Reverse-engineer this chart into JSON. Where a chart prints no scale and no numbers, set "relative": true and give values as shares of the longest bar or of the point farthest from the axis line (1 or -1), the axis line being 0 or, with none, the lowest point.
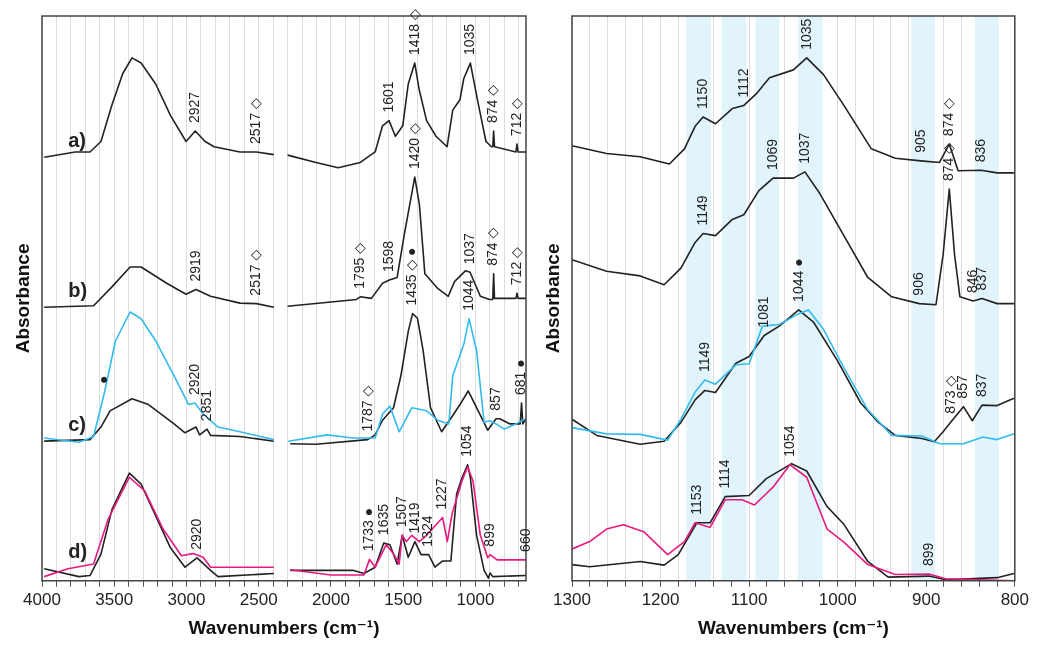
{
  "chart_data": [
    {
      "type": "line",
      "xlabel": "Wavenumbers (cm⁻¹)",
      "ylabel": "Absorbance",
      "relative": true,
      "grid": "x",
      "marker": "none",
      "legend": false,
      "xlim": [
        4000,
        650
      ],
      "xticks": [
        4000,
        {
          "value": 3900,
          "label": null
        },
        {
          "value": 3800,
          "label": null
        },
        {
          "value": 3700,
          "label": null
        },
        {
          "value": 3600,
          "label": null
        },
        3500,
        {
          "value": 3400,
          "label": null
        },
        {
          "value": 3300,
          "label": null
        },
        {
          "value": 3200,
          "label": null
        },
        {
          "value": 3100,
          "label": null
        },
        3000,
        {
          "value": 2900,
          "label": null
        },
        {
          "value": 2800,
          "label": null
        },
        {
          "value": 2700,
          "label": null
        },
        {
          "value": 2600,
          "label": null
        },
        2500,
        {
          "value": 2400,
          "label": null
        },
        {
          "value": 2300,
          "label": null
        },
        {
          "value": 2200,
          "label": null
        },
        {
          "value": 2100,
          "label": null
        },
        2000,
        {
          "value": 1900,
          "label": null
        },
        {
          "value": 1800,
          "label": null
        },
        {
          "value": 1700,
          "label": null
        },
        {
          "value": 1600,
          "label": null
        },
        1500,
        {
          "value": 1400,
          "label": null
        },
        {
          "value": 1300,
          "label": null
        },
        {
          "value": 1200,
          "label": null
        },
        {
          "value": 1100,
          "label": null
        },
        1000,
        {
          "value": 900,
          "label": null
        },
        {
          "value": 800,
          "label": null
        },
        {
          "value": 700,
          "label": null
        }
      ],
      "series": [
        {
          "name": "a)",
          "color": "#222222",
          "x": [
            3985,
            3770,
            3668,
            3592,
            3516,
            3441,
            3377,
            3314,
            3213,
            3111,
            3003,
            2939,
            2871,
            2808,
            2630,
            2516,
            2395,
            2350,
            2300,
            2103,
            1950,
            1797,
            1694,
            1643,
            1598,
            1554,
            1503,
            1465,
            1420,
            1390,
            1338,
            1273,
            1196,
            1157,
            1107,
            1081,
            1035,
            979,
            927,
            889,
            880,
            874,
            868,
            720,
            712,
            705,
            650
          ],
          "values": [
            0.81,
            0.82,
            0.82,
            0.84,
            0.91,
            0.97,
            1.0,
            0.99,
            0.95,
            0.89,
            0.84,
            0.86,
            0.84,
            0.83,
            0.82,
            0.82,
            0.815,
            null,
            0.814,
            0.8,
            0.79,
            0.8,
            0.82,
            0.87,
            0.88,
            0.85,
            0.87,
            0.95,
            0.99,
            0.94,
            0.88,
            0.85,
            0.83,
            0.9,
            0.92,
            0.96,
            0.99,
            0.91,
            0.84,
            0.83,
            0.83,
            0.86,
            0.83,
            0.82,
            0.835,
            0.82,
            0.82
          ]
        },
        {
          "name": "b)",
          "color": "#222222",
          "x": [
            3985,
            3643,
            3516,
            3390,
            3314,
            3137,
            3003,
            2934,
            2833,
            2630,
            2516,
            2395,
            2350,
            2300,
            1823,
            1797,
            1720,
            1643,
            1596,
            1542,
            1490,
            1420,
            1388,
            1350,
            1261,
            1188,
            1145,
            1068,
            1037,
            966,
            902,
            880,
            874,
            868,
            720,
            712,
            705,
            650
          ],
          "values": [
            0.523,
            0.526,
            0.562,
            0.6,
            0.6,
            0.569,
            0.548,
            0.557,
            0.544,
            0.531,
            0.53,
            0.523,
            null,
            0.525,
            0.538,
            0.543,
            0.54,
            0.569,
            0.575,
            0.58,
            0.666,
            0.772,
            0.72,
            0.587,
            0.559,
            0.544,
            0.572,
            0.593,
            0.59,
            0.544,
            0.538,
            0.538,
            0.587,
            0.54,
            0.54,
            0.55,
            0.54,
            0.54
          ]
        },
        {
          "color": "#33bbee",
          "x": [
            3985,
            3744,
            3643,
            3567,
            3491,
            3390,
            3314,
            3213,
            3086,
            2985,
            2942,
            2884,
            2782,
            2630,
            2395,
            2350,
            2295,
            2026,
            1848,
            1694,
            1643,
            1592,
            1528,
            1440,
            1338,
            1261,
            1184,
            1157,
            1080,
            1044,
            992,
            940,
            902,
            857,
            800,
            720,
            650
          ],
          "values": [
            0.273,
            0.265,
            0.276,
            0.361,
            0.459,
            0.514,
            0.501,
            0.459,
            0.392,
            0.337,
            0.34,
            0.319,
            0.294,
            0.285,
            0.27,
            null,
            0.267,
            0.279,
            0.273,
            0.273,
            0.319,
            0.334,
            0.285,
            0.331,
            0.325,
            0.307,
            0.3,
            0.392,
            0.453,
            0.501,
            0.44,
            0.303,
            0.306,
            0.3,
            0.29,
            0.3,
            0.31
          ]
        },
        {
          "name": "c)",
          "color": "#222222",
          "x": [
            3985,
            3668,
            3592,
            3529,
            3377,
            3263,
            3086,
            3010,
            2934,
            2909,
            2858,
            2833,
            2630,
            2395,
            2350,
            2282,
            2103,
            1746,
            1694,
            1643,
            1567,
            1516,
            1465,
            1435,
            1401,
            1362,
            1311,
            1234,
            1157,
            1107,
            1050,
            992,
            915,
            870,
            857,
            832,
            760,
            690,
            681,
            672,
            650
          ],
          "values": [
            0.267,
            0.27,
            0.294,
            0.325,
            0.348,
            0.337,
            0.3,
            0.283,
            0.294,
            0.279,
            0.29,
            0.278,
            0.276,
            0.267,
            null,
            0.262,
            0.261,
            0.27,
            0.279,
            0.307,
            0.331,
            0.392,
            0.477,
            0.511,
            0.502,
            0.44,
            0.331,
            0.285,
            0.316,
            0.337,
            0.363,
            0.331,
            0.288,
            0.305,
            0.31,
            0.31,
            0.3,
            0.3,
            0.34,
            0.3,
            0.31
          ]
        },
        {
          "color": "#e8197f",
          "x": [
            3985,
            3820,
            3643,
            3542,
            3395,
            3289,
            3162,
            3035,
            2954,
            2884,
            2833,
            2630,
            2395,
            2350,
            2282,
            2001,
            1772,
            1733,
            1694,
            1617,
            1566,
            1528,
            1507,
            1478,
            1440,
            1389,
            1338,
            1227,
            1195,
            1160,
            1093,
            1054,
            1017,
            966,
            915,
            899,
            850,
            650
          ],
          "values": [
            0.008,
            0.023,
            0.032,
            0.118,
            0.198,
            0.172,
            0.099,
            0.048,
            0.052,
            0.045,
            0.026,
            0.026,
            0.026,
            null,
            0.021,
            0.011,
            0.011,
            0.041,
            0.026,
            0.069,
            0.051,
            0.032,
            0.087,
            0.075,
            0.087,
            0.075,
            0.087,
            0.121,
            0.075,
            0.13,
            0.191,
            0.218,
            0.191,
            0.087,
            0.044,
            0.05,
            0.04,
            0.04
          ]
        },
        {
          "name": "d)",
          "color": "#222222",
          "x": [
            3985,
            3744,
            3668,
            3592,
            3516,
            3395,
            3314,
            3213,
            3111,
            3010,
            2927,
            2833,
            2782,
            2395,
            2350,
            2282,
            1848,
            1772,
            1694,
            1635,
            1592,
            1542,
            1507,
            1465,
            1419,
            1376,
            1324,
            1280,
            1227,
            1170,
            1130,
            1093,
            1054,
            1035,
            992,
            940,
            910,
            899,
            880,
            650
          ],
          "values": [
            0.023,
            0.008,
            0.01,
            0.051,
            0.136,
            0.206,
            0.185,
            0.124,
            0.063,
            0.026,
            0.044,
            0.02,
            0.008,
            0.014,
            null,
            0.02,
            0.02,
            0.014,
            0.026,
            0.072,
            0.069,
            0.032,
            0.087,
            0.045,
            0.075,
            0.05,
            0.05,
            0.026,
            0.038,
            0.038,
            0.166,
            0.197,
            0.222,
            0.197,
            0.087,
            0.02,
            0.005,
            0.015,
            0.008,
            0.01
          ]
        }
      ],
      "annotations": [
        {
          "text": "2927",
          "x": 2939,
          "y": 0.86
        },
        {
          "text": "2517 ◇",
          "x": 2516,
          "y": 0.82
        },
        {
          "text": "1601",
          "x": 1598,
          "y": 0.88
        },
        {
          "text": "1418 ◇",
          "x": 1420,
          "y": 0.99
        },
        {
          "text": "1035",
          "x": 1035,
          "y": 0.99
        },
        {
          "text": "874 ◇",
          "x": 874,
          "y": 0.86
        },
        {
          "text": "712 ◇",
          "x": 712,
          "y": 0.835
        },
        {
          "text": "2919",
          "x": 2934,
          "y": 0.557
        },
        {
          "text": "2517 ◇",
          "x": 2516,
          "y": 0.53
        },
        {
          "text": "1795 ◇",
          "x": 1797,
          "y": 0.543
        },
        {
          "text": "1598",
          "x": 1596,
          "y": 0.575
        },
        {
          "text": "1420 ◇",
          "x": 1420,
          "y": 0.772
        },
        {
          "text": "1037",
          "x": 1037,
          "y": 0.59
        },
        {
          "text": "874 ◇",
          "x": 874,
          "y": 0.587
        },
        {
          "text": "712 ◇",
          "x": 712,
          "y": 0.55
        },
        {
          "text": "●",
          "x": 3567,
          "y": 0.361
        },
        {
          "text": "2920",
          "x": 2942,
          "y": 0.34
        },
        {
          "text": "2851",
          "x": 2858,
          "y": 0.29
        },
        {
          "text": "1787 ◇",
          "x": 1746,
          "y": 0.27
        },
        {
          "text": "1733 ●",
          "x": 1733,
          "y": 0.041
        },
        {
          "text": "1435 ◇ ●",
          "x": 1435,
          "y": 0.511
        },
        {
          "text": "1044",
          "x": 1044,
          "y": 0.501
        },
        {
          "text": "857",
          "x": 857,
          "y": 0.31
        },
        {
          "text": "681 ●",
          "x": 681,
          "y": 0.34
        },
        {
          "text": "2920",
          "x": 2927,
          "y": 0.044
        },
        {
          "text": "1635",
          "x": 1635,
          "y": 0.072
        },
        {
          "text": "1507",
          "x": 1507,
          "y": 0.087
        },
        {
          "text": "1419",
          "x": 1419,
          "y": 0.075
        },
        {
          "text": "1324",
          "x": 1324,
          "y": 0.05
        },
        {
          "text": "1227",
          "x": 1227,
          "y": 0.121
        },
        {
          "text": "1054",
          "x": 1054,
          "y": 0.222
        },
        {
          "text": "899",
          "x": 899,
          "y": 0.05
        },
        {
          "text": "660",
          "x": 650,
          "y": 0.04
        }
      ]
    },
    {
      "type": "line",
      "xlabel": "Wavenumbers (cm⁻¹)",
      "ylabel": "Absorbance",
      "relative": true,
      "grid": "x",
      "marker": "none",
      "legend": false,
      "xlim": [
        1300,
        800
      ],
      "xticks": [
        1300,
        {
          "value": 1280,
          "label": null
        },
        {
          "value": 1260,
          "label": null
        },
        {
          "value": 1240,
          "label": null
        },
        {
          "value": 1220,
          "label": null
        },
        1200,
        {
          "value": 1180,
          "label": null
        },
        {
          "value": 1160,
          "label": null
        },
        {
          "value": 1140,
          "label": null
        },
        {
          "value": 1120,
          "label": null
        },
        1100,
        {
          "value": 1080,
          "label": null
        },
        {
          "value": 1060,
          "label": null
        },
        {
          "value": 1040,
          "label": null
        },
        {
          "value": 1020,
          "label": null
        },
        1000,
        {
          "value": 980,
          "label": null
        },
        {
          "value": 960,
          "label": null
        },
        {
          "value": 940,
          "label": null
        },
        {
          "value": 920,
          "label": null
        },
        900,
        {
          "value": 880,
          "label": null
        },
        {
          "value": 860,
          "label": null
        },
        {
          "value": 840,
          "label": null
        },
        {
          "value": 820,
          "label": null
        },
        800
      ],
      "bands": [
        {
          "axis": "x",
          "from": 1171,
          "to": 1143,
          "color": "#e1f4fc"
        },
        {
          "axis": "x",
          "from": 1131,
          "to": 1103,
          "color": "#e1f4fc"
        },
        {
          "axis": "x",
          "from": 1093,
          "to": 1066,
          "color": "#e1f4fc"
        },
        {
          "axis": "x",
          "from": 1045,
          "to": 1017,
          "color": "#e1f4fc"
        },
        {
          "axis": "x",
          "from": 917,
          "to": 890,
          "color": "#e1f4fc"
        },
        {
          "axis": "x",
          "from": 845,
          "to": 818,
          "color": "#e1f4fc"
        }
      ],
      "series": [
        {
          "color": "#222222",
          "x": [
            1300,
            1261,
            1223,
            1190,
            1173,
            1161,
            1152,
            1138,
            1119,
            1106,
            1092,
            1077,
            1050,
            1035,
            1016,
            993,
            962,
            935,
            906,
            885,
            874,
            864,
            838,
            820,
            801
          ],
          "values": [
            0.832,
            0.817,
            0.811,
            0.797,
            0.826,
            0.869,
            0.887,
            0.874,
            0.903,
            0.909,
            0.931,
            0.962,
            0.977,
            1.0,
            0.968,
            0.909,
            0.826,
            0.808,
            0.803,
            0.8,
            0.835,
            0.784,
            0.785,
            0.78,
            0.78
          ]
        },
        {
          "color": "#222222",
          "x": [
            1300,
            1261,
            1223,
            1196,
            1177,
            1161,
            1152,
            1138,
            1119,
            1106,
            1089,
            1073,
            1050,
            1037,
            1020,
            993,
            966,
            939,
            908,
            889,
            881,
            874,
            868,
            862,
            847,
            837,
            820,
            801
          ],
          "values": [
            0.614,
            0.592,
            0.583,
            0.566,
            0.598,
            0.647,
            0.664,
            0.66,
            0.691,
            0.7,
            0.746,
            0.77,
            0.77,
            0.782,
            0.74,
            0.66,
            0.58,
            0.543,
            0.53,
            0.528,
            0.623,
            0.749,
            0.623,
            0.543,
            0.535,
            0.54,
            0.53,
            0.53
          ]
        },
        {
          "color": "#33bbee",
          "x": [
            1300,
            1261,
            1223,
            1192,
            1177,
            1161,
            1150,
            1138,
            1115,
            1100,
            1085,
            1066,
            1046,
            1033,
            1016,
            993,
            966,
            939,
            905,
            885,
            858,
            836,
            820,
            801
          ],
          "values": [
            0.293,
            0.281,
            0.28,
            0.269,
            0.309,
            0.361,
            0.384,
            0.376,
            0.413,
            0.415,
            0.487,
            0.49,
            0.509,
            0.518,
            0.481,
            0.407,
            0.327,
            0.278,
            0.277,
            0.262,
            0.262,
            0.275,
            0.27,
            0.281
          ]
        },
        {
          "color": "#222222",
          "x": [
            1300,
            1272,
            1223,
            1196,
            1177,
            1161,
            1150,
            1138,
            1115,
            1100,
            1083,
            1066,
            1044,
            1027,
            1000,
            974,
            954,
            935,
            905,
            891,
            881,
            872,
            858,
            848,
            837,
            820,
            801
          ],
          "values": [
            0.309,
            0.278,
            0.261,
            0.267,
            0.303,
            0.346,
            0.364,
            0.36,
            0.416,
            0.429,
            0.469,
            0.487,
            0.518,
            0.494,
            0.42,
            0.34,
            0.303,
            0.278,
            0.272,
            0.266,
            0.285,
            0.304,
            0.333,
            0.306,
            0.336,
            0.335,
            0.349
          ]
        },
        {
          "color": "#e8197f",
          "x": [
            1300,
            1280,
            1261,
            1242,
            1219,
            1192,
            1173,
            1161,
            1144,
            1127,
            1108,
            1094,
            1073,
            1054,
            1035,
            1012,
            993,
            966,
            935,
            897,
            878,
            801
          ],
          "values": [
            0.061,
            0.075,
            0.099,
            0.107,
            0.094,
            0.05,
            0.075,
            0.111,
            0.102,
            0.155,
            0.155,
            0.145,
            0.179,
            0.222,
            0.198,
            0.099,
            0.074,
            0.031,
            0.012,
            0.013,
            0.004,
            0.0
          ]
        },
        {
          "color": "#222222",
          "x": [
            1300,
            1280,
            1223,
            1196,
            1180,
            1159,
            1144,
            1127,
            1100,
            1081,
            1052,
            1035,
            1012,
            993,
            966,
            943,
            897,
            878,
            820,
            801
          ],
          "values": [
            0.031,
            0.027,
            0.037,
            0.03,
            0.05,
            0.111,
            0.111,
            0.161,
            0.163,
            0.195,
            0.224,
            0.21,
            0.142,
            0.108,
            0.037,
            0.007,
            0.009,
            0.002,
            0.006,
            0.014
          ]
        }
      ],
      "annotations": [
        {
          "text": "1150",
          "x": 1152,
          "y": 0.887
        },
        {
          "text": "1112",
          "x": 1106,
          "y": 0.909
        },
        {
          "text": "1035",
          "x": 1035,
          "y": 1.0
        },
        {
          "text": "905",
          "x": 906,
          "y": 0.803
        },
        {
          "text": "874 ◇",
          "x": 874,
          "y": 0.835
        },
        {
          "text": "836",
          "x": 838,
          "y": 0.785
        },
        {
          "text": "1149",
          "x": 1152,
          "y": 0.664
        },
        {
          "text": "1069",
          "x": 1073,
          "y": 0.77
        },
        {
          "text": "1037",
          "x": 1037,
          "y": 0.782
        },
        {
          "text": "874 ◇",
          "x": 874,
          "y": 0.749
        },
        {
          "text": "906",
          "x": 908,
          "y": 0.53
        },
        {
          "text": "846",
          "x": 847,
          "y": 0.535
        },
        {
          "text": "837",
          "x": 837,
          "y": 0.54
        },
        {
          "text": "1149",
          "x": 1150,
          "y": 0.384
        },
        {
          "text": "1081",
          "x": 1083,
          "y": 0.469
        },
        {
          "text": "1044 ●",
          "x": 1044,
          "y": 0.518
        },
        {
          "text": "873 ◇",
          "x": 872,
          "y": 0.304
        },
        {
          "text": "857",
          "x": 858,
          "y": 0.333
        },
        {
          "text": "837",
          "x": 837,
          "y": 0.336
        },
        {
          "text": "1153",
          "x": 1159,
          "y": 0.111
        },
        {
          "text": "1114",
          "x": 1127,
          "y": 0.161
        },
        {
          "text": "1054",
          "x": 1054,
          "y": 0.222
        },
        {
          "text": "899",
          "x": 897,
          "y": 0.013
        }
      ]
    }
  ]
}
